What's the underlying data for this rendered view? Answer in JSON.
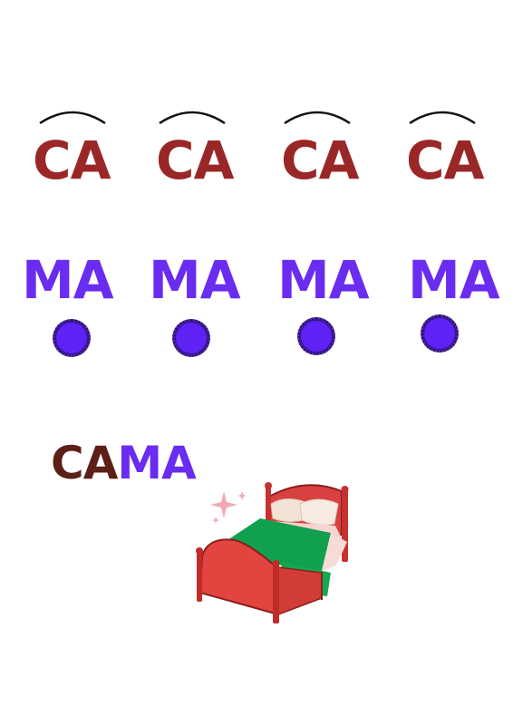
{
  "syllables": {
    "top": [
      "CA",
      "CA",
      "CA",
      "CA"
    ],
    "bottom": [
      "MA",
      "MA",
      "MA",
      "MA"
    ]
  },
  "word": {
    "part1": "CA",
    "part2": "MA"
  },
  "colors": {
    "ca": "#9a2727",
    "ma": "#6a2cf0",
    "dot": "#5e22f5",
    "word_part1": "#5c2018",
    "bed_frame": "#d8413f",
    "blanket": "#11a04e"
  },
  "icons": [
    "arc-mark",
    "dot-mark",
    "bed-illustration",
    "sparkle-icon"
  ]
}
